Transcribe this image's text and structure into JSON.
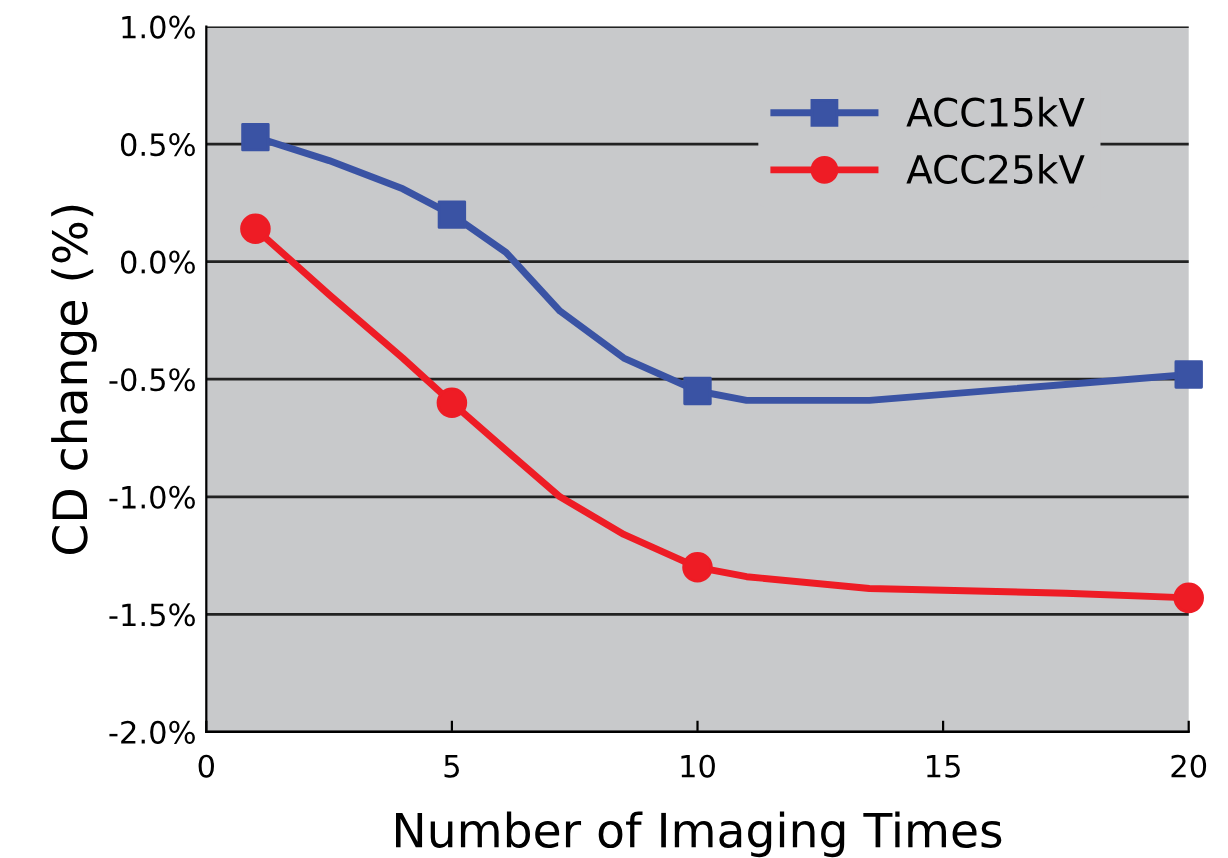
{
  "chart_data": {
    "type": "line",
    "xlabel": "Number of Imaging Times",
    "ylabel": "CD change (%)",
    "series": [
      {
        "color": "#3a53a4",
        "x": [
          1,
          2.5,
          4,
          5,
          6.1,
          7.2,
          8.5,
          10,
          11,
          13.5,
          20
        ],
        "values": [
          0.53,
          0.43,
          0.31,
          0.2,
          0.04,
          -0.21,
          -0.41,
          -0.55,
          -0.59,
          -0.59,
          -0.48
        ]
      },
      {
        "color": "#ee1c25",
        "x": [
          1,
          2.5,
          4,
          5,
          6.2,
          7.2,
          8.5,
          10,
          11,
          13.5,
          17.5,
          20
        ],
        "values": [
          0.14,
          -0.14,
          -0.41,
          -0.6,
          -0.82,
          -1.0,
          -1.16,
          -1.3,
          -1.34,
          -1.39,
          -1.41,
          -1.43
        ]
      },
      {
        "type": "scatter",
        "name": "ACC15kV",
        "color": "#3a53a4",
        "x": [
          1,
          5,
          10,
          20
        ],
        "values": [
          0.53,
          0.2,
          -0.55,
          -0.48
        ],
        "marker": "square"
      },
      {
        "type": "scatter",
        "name": "ACC25kV",
        "color": "#ee1c25",
        "x": [
          1,
          5,
          10,
          20
        ],
        "values": [
          0.14,
          -0.6,
          -1.3,
          -1.43
        ],
        "marker": "circle"
      }
    ],
    "xlim": [
      0,
      20
    ],
    "xticks": [
      0,
      5,
      10,
      15,
      20
    ],
    "ylim": [
      -2.0,
      1.0
    ],
    "yticks": [
      {
        "value": -2.0,
        "label": "-2.0%"
      },
      {
        "value": -1.5,
        "label": "-1.5%"
      },
      {
        "value": -1.0,
        "label": "-1.0%"
      },
      {
        "value": -0.5,
        "label": "-0.5%"
      },
      {
        "value": 0.0,
        "label": "0.0%"
      },
      {
        "value": 0.5,
        "label": "0.5%"
      },
      {
        "value": 1.0,
        "label": "1.0%"
      }
    ],
    "grid": "y",
    "legend": "top right",
    "line_style": "solid"
  }
}
